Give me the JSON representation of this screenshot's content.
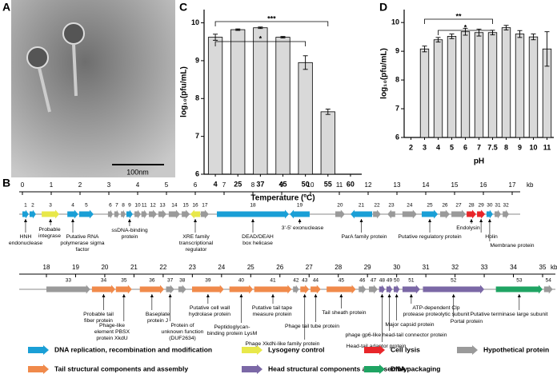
{
  "panel_labels": [
    "A",
    "B",
    "C",
    "D"
  ],
  "image": {
    "scale_bar": "100nm"
  },
  "chart_data": [
    {
      "type": "bar",
      "x_label": "Temperature (ºC)",
      "y_label": "log₁₀(pfu/mL)",
      "categories": [
        "4",
        "25",
        "37",
        "45",
        "50",
        "55",
        "60"
      ],
      "values": [
        9.62,
        9.82,
        9.87,
        9.62,
        8.95,
        7.65,
        null
      ],
      "errors": [
        0.08,
        0.02,
        0.02,
        0.02,
        0.18,
        0.07,
        null
      ],
      "color": "#d9d9d9",
      "ylim": [
        6,
        10.35
      ],
      "yticks": [
        6,
        7,
        8,
        9,
        10
      ],
      "significance": [
        {
          "text": "*",
          "from": "4",
          "to": "50"
        },
        {
          "text": "***",
          "from": "4",
          "to": "55"
        }
      ]
    },
    {
      "type": "bar",
      "x_label": "pH",
      "y_label": "log₁₀(pfu/mL)",
      "categories": [
        "2",
        "3",
        "4",
        "5",
        "6",
        "7",
        "7.5",
        "8",
        "9",
        "10",
        "11"
      ],
      "values": [
        null,
        9.08,
        9.4,
        9.52,
        9.68,
        9.65,
        9.65,
        9.82,
        9.6,
        9.5,
        9.08
      ],
      "errors": [
        null,
        0.1,
        0.08,
        0.08,
        0.12,
        0.12,
        0.08,
        0.08,
        0.12,
        0.1,
        0.6
      ],
      "color": "#d9d9d9",
      "ylim": [
        6,
        10.45
      ],
      "yticks": [
        6,
        7,
        8,
        9,
        10
      ],
      "significance": [
        {
          "text": "**",
          "from": "3",
          "to": "7.5"
        },
        {
          "text": "*",
          "from": "4",
          "to": "7.5"
        }
      ]
    }
  ],
  "genome_map": {
    "unit": "kb",
    "rows": [
      {
        "xlim": [
          0,
          17
        ],
        "ticks": [
          0,
          1,
          2,
          3,
          4,
          5,
          6,
          7,
          8,
          9,
          10,
          11,
          12,
          13,
          14,
          15,
          16,
          17
        ]
      },
      {
        "xlim": [
          18,
          35
        ],
        "ticks": [
          18,
          19,
          20,
          21,
          22,
          23,
          24,
          25,
          26,
          27,
          28,
          29,
          30,
          31,
          32,
          33,
          34,
          35
        ]
      }
    ],
    "genes": [
      {
        "label": "1",
        "start": 0.0,
        "end": 0.22,
        "strand": "+",
        "color": "#1a9fd6",
        "annotation": [
          "HNH",
          "endonuclease"
        ]
      },
      {
        "label": "2",
        "start": 0.25,
        "end": 0.47,
        "strand": "+",
        "color": "#1a9fd6"
      },
      {
        "label": "3",
        "start": 0.67,
        "end": 1.28,
        "strand": "+",
        "color": "#e8e84a",
        "annotation": [
          "Probable",
          "integrase"
        ]
      },
      {
        "label": "4",
        "start": 1.56,
        "end": 1.94,
        "strand": "+",
        "color": "#1a9fd6",
        "annotation": [
          "Putative RNA",
          "polymerase sigma",
          "factor"
        ]
      },
      {
        "label": "5",
        "start": 1.97,
        "end": 2.47,
        "strand": "+",
        "color": "#1a9fd6"
      },
      {
        "label": "6",
        "start": 2.97,
        "end": 3.14,
        "strand": "+",
        "color": "#9a9a9a"
      },
      {
        "label": "7",
        "start": 3.19,
        "end": 3.36,
        "strand": "+",
        "color": "#9a9a9a"
      },
      {
        "label": "8",
        "start": 3.42,
        "end": 3.58,
        "strand": "+",
        "color": "#9a9a9a"
      },
      {
        "label": "9",
        "start": 3.61,
        "end": 3.83,
        "strand": "+",
        "color": "#1a9fd6",
        "annotation": [
          "ssDNA-binding",
          "protein"
        ]
      },
      {
        "label": "10",
        "start": 3.89,
        "end": 4.11,
        "strand": "+",
        "color": "#9a9a9a"
      },
      {
        "label": "11",
        "start": 4.13,
        "end": 4.33,
        "strand": "+",
        "color": "#9a9a9a"
      },
      {
        "label": "12",
        "start": 4.39,
        "end": 4.67,
        "strand": "+",
        "color": "#9a9a9a"
      },
      {
        "label": "13",
        "start": 4.72,
        "end": 5.0,
        "strand": "+",
        "color": "#9a9a9a"
      },
      {
        "label": "14",
        "start": 5.08,
        "end": 5.47,
        "strand": "+",
        "color": "#9a9a9a"
      },
      {
        "label": "15",
        "start": 5.53,
        "end": 5.81,
        "strand": "+",
        "color": "#9a9a9a"
      },
      {
        "label": "16",
        "start": 5.83,
        "end": 6.17,
        "strand": "-",
        "color": "#e8e84a",
        "annotation": [
          "XRE family",
          "transcriptional",
          "regulator"
        ]
      },
      {
        "label": "17",
        "start": 6.19,
        "end": 6.47,
        "strand": "+",
        "color": "#9a9a9a"
      },
      {
        "label": "18",
        "start": 6.75,
        "end": 9.25,
        "strand": "+",
        "color": "#1a9fd6",
        "annotation": [
          "DEAD/DEAH",
          "box helicase"
        ]
      },
      {
        "label": "19",
        "start": 9.28,
        "end": 9.97,
        "strand": "-",
        "color": "#1a9fd6",
        "annotation": [
          "3'-5' exonuclease"
        ]
      },
      {
        "label": "20",
        "start": 10.86,
        "end": 11.19,
        "strand": "+",
        "color": "#9a9a9a"
      },
      {
        "label": "21",
        "start": 11.39,
        "end": 12.14,
        "strand": "-",
        "color": "#1a9fd6",
        "annotation": [
          "ParA family protein"
        ]
      },
      {
        "label": "22",
        "start": 12.17,
        "end": 12.44,
        "strand": "+",
        "color": "#9a9a9a"
      },
      {
        "label": "23",
        "start": 12.67,
        "end": 12.94,
        "strand": "-",
        "color": "#9a9a9a"
      },
      {
        "label": "24",
        "start": 13.19,
        "end": 13.69,
        "strand": "+",
        "color": "#9a9a9a"
      },
      {
        "label": "25",
        "start": 13.86,
        "end": 14.42,
        "strand": "+",
        "color": "#1a9fd6",
        "annotation": [
          "Putative regulatory protein"
        ]
      },
      {
        "label": "26",
        "start": 14.5,
        "end": 14.83,
        "strand": "+",
        "color": "#9a9a9a"
      },
      {
        "label": "27",
        "start": 14.89,
        "end": 15.39,
        "strand": "+",
        "color": "#9a9a9a"
      },
      {
        "label": "28",
        "start": 15.42,
        "end": 15.75,
        "strand": "+",
        "color": "#e8262a",
        "annotation": [
          "Endolysin"
        ]
      },
      {
        "label": "29",
        "start": 15.78,
        "end": 16.06,
        "strand": "+",
        "color": "#e8262a",
        "annotation": [
          "Holin"
        ]
      },
      {
        "label": "30",
        "start": 16.11,
        "end": 16.33,
        "strand": "+",
        "color": "#1a9fd6",
        "annotation": [
          "Membrane protein"
        ]
      },
      {
        "label": "31",
        "start": 16.39,
        "end": 16.61,
        "strand": "+",
        "color": "#9a9a9a"
      },
      {
        "label": "32",
        "start": 16.67,
        "end": 16.89,
        "strand": "+",
        "color": "#9a9a9a"
      },
      {
        "label": "33",
        "start": 18.0,
        "end": 19.5,
        "strand": "+",
        "color": "#9a9a9a"
      },
      {
        "label": "34",
        "start": 19.56,
        "end": 20.36,
        "strand": "+",
        "color": "#f08a4b",
        "annotation": [
          "Probable tail",
          "fiber protein"
        ]
      },
      {
        "label": "35",
        "start": 20.38,
        "end": 20.93,
        "strand": "+",
        "color": "#f08a4b",
        "annotation": [
          "Phage-like",
          "element PBSX",
          "protein XkdU"
        ]
      },
      {
        "label": "36",
        "start": 21.2,
        "end": 22.03,
        "strand": "+",
        "color": "#f08a4b",
        "annotation": [
          "Baseplate",
          "protein J"
        ]
      },
      {
        "label": "37",
        "start": 22.1,
        "end": 22.38,
        "strand": "+",
        "color": "#9a9a9a",
        "annotation": [
          "Protein of",
          "unknown function",
          "(DUF2634)"
        ]
      },
      {
        "label": "38",
        "start": 22.52,
        "end": 22.79,
        "strand": "+",
        "color": "#9a9a9a"
      },
      {
        "label": "39",
        "start": 22.99,
        "end": 24.08,
        "strand": "+",
        "color": "#f08a4b",
        "annotation": [
          "Putative cell wall",
          "hydrolase protein"
        ]
      },
      {
        "label": "40",
        "start": 24.27,
        "end": 25.08,
        "strand": "+",
        "color": "#f08a4b",
        "annotation": [
          "Peptidoglycan-",
          "binding protein LysM"
        ]
      },
      {
        "label": "41",
        "start": 25.12,
        "end": 26.4,
        "strand": "+",
        "color": "#f08a4b",
        "annotation": [
          "Putative tail tape",
          "measure protein"
        ]
      },
      {
        "label": "42",
        "start": 26.45,
        "end": 26.65,
        "strand": "+",
        "color": "#9a9a9a"
      },
      {
        "label": "43",
        "start": 26.7,
        "end": 27.0,
        "strand": "+",
        "color": "#f08a4b",
        "annotation": [
          "Phage XkdN-like family protein"
        ]
      },
      {
        "label": "44",
        "start": 27.05,
        "end": 27.4,
        "strand": "+",
        "color": "#f08a4b",
        "annotation": [
          "Phage tail tube protein"
        ]
      },
      {
        "label": "45",
        "start": 27.6,
        "end": 28.6,
        "strand": "+",
        "color": "#f08a4b",
        "annotation": [
          "Tail sheath protein"
        ]
      },
      {
        "label": "46",
        "start": 28.7,
        "end": 28.95,
        "strand": "+",
        "color": "#9a9a9a"
      },
      {
        "label": "47",
        "start": 29.05,
        "end": 29.35,
        "strand": "+",
        "color": "#9a9a9a"
      },
      {
        "label": "48",
        "start": 29.4,
        "end": 29.6,
        "strand": "+",
        "color": "#7b68a6",
        "annotation": [
          "Head-tail adaptor protein"
        ]
      },
      {
        "label": "49",
        "start": 29.65,
        "end": 29.85,
        "strand": "+",
        "color": "#7b68a6",
        "annotation": [
          "phage gp6-like head-tail connector protein"
        ]
      },
      {
        "label": "50",
        "start": 29.9,
        "end": 30.1,
        "strand": "+",
        "color": "#7b68a6",
        "annotation": [
          "Major capsid protein"
        ]
      },
      {
        "label": "51",
        "start": 30.2,
        "end": 30.8,
        "strand": "+",
        "color": "#7b68a6",
        "annotation": [
          "ATP-dependent Clp",
          "protease proteolytic subunit"
        ]
      },
      {
        "label": "52",
        "start": 30.9,
        "end": 33.0,
        "strand": "+",
        "color": "#7b68a6",
        "annotation": [
          "Portal protein"
        ]
      },
      {
        "label": "53",
        "start": 33.4,
        "end": 35.0,
        "strand": "+",
        "color": "#1fa463",
        "annotation": [
          "Putative terminase large subunit"
        ]
      },
      {
        "label": "54",
        "start": 35.05,
        "end": 35.35,
        "strand": "+",
        "color": "#9a9a9a"
      }
    ],
    "legend": [
      {
        "name": "DNA replication, recombination and modification",
        "color": "#1a9fd6"
      },
      {
        "name": "Lysogeny control",
        "color": "#e8e84a"
      },
      {
        "name": "Cell lysis",
        "color": "#e8262a"
      },
      {
        "name": "Hypothetical protein",
        "color": "#9a9a9a"
      },
      {
        "name": "Tail structural components and assembly",
        "color": "#f08a4b"
      },
      {
        "name": "Head structural components and assembly",
        "color": "#7b68a6"
      },
      {
        "name": "DNA packaging",
        "color": "#1fa463"
      }
    ]
  }
}
